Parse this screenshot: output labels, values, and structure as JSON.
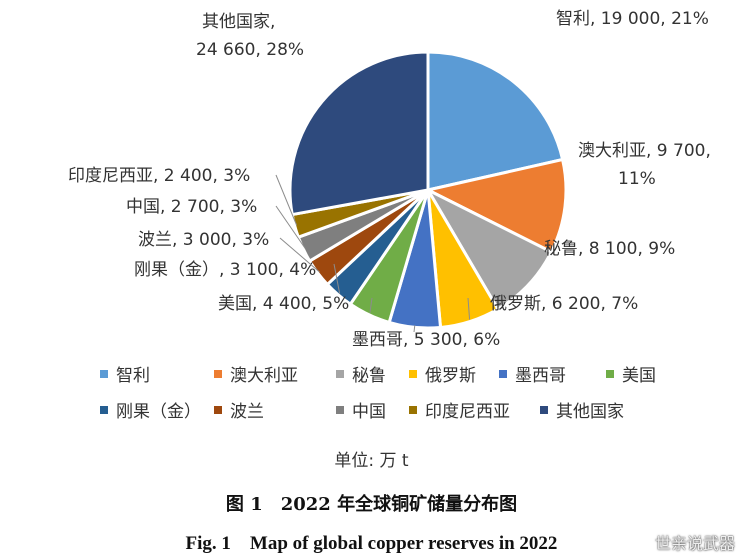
{
  "chart_data": {
    "type": "pie",
    "unit_label": "单位: 万 t",
    "slices": [
      {
        "name": "智利",
        "value": 19000,
        "percent": 21,
        "color": "#5b9bd5",
        "label": "智利, 19 000, 21%"
      },
      {
        "name": "澳大利亚",
        "value": 9700,
        "percent": 11,
        "color": "#ed7d31",
        "label_line1": "澳大利亚, 9 700,",
        "label_line2": "11%"
      },
      {
        "name": "秘鲁",
        "value": 8100,
        "percent": 9,
        "color": "#a5a5a5",
        "label": "秘鲁, 8 100, 9%"
      },
      {
        "name": "俄罗斯",
        "value": 6200,
        "percent": 7,
        "color": "#ffc000",
        "label": "俄罗斯, 6 200, 7%"
      },
      {
        "name": "墨西哥",
        "value": 5300,
        "percent": 6,
        "color": "#4472c4",
        "label": "墨西哥, 5 300, 6%"
      },
      {
        "name": "美国",
        "value": 4400,
        "percent": 5,
        "color": "#70ad47",
        "label": "美国, 4 400, 5%"
      },
      {
        "name": "刚果（金）",
        "value": 3100,
        "percent": 4,
        "color": "#255e91",
        "label": "刚果（金）, 3 100, 4%"
      },
      {
        "name": "波兰",
        "value": 3000,
        "percent": 3,
        "color": "#9e480e",
        "label": "波兰, 3 000, 3%"
      },
      {
        "name": "中国",
        "value": 2700,
        "percent": 3,
        "color": "#7f7f7f",
        "label": "中国, 2 700, 3%"
      },
      {
        "name": "印度尼西亚",
        "value": 2400,
        "percent": 3,
        "color": "#997300",
        "label": "印度尼西亚, 2 400, 3%"
      },
      {
        "name": "其他国家",
        "value": 24660,
        "percent": 28,
        "color": "#2e4a7d",
        "label_line1": "其他国家,",
        "label_line2": "24 660, 28%"
      }
    ],
    "legend": [
      "智利",
      "澳大利亚",
      "秘鲁",
      "俄罗斯",
      "墨西哥",
      "美国",
      "刚果（金）",
      "波兰",
      "中国",
      "印度尼西亚",
      "其他国家"
    ]
  },
  "caption": {
    "cn": "图 1　2022 年全球铜矿储量分布图",
    "en": "Fig. 1　Map of global copper reserves in 2022"
  },
  "watermark": "世亲说武器"
}
